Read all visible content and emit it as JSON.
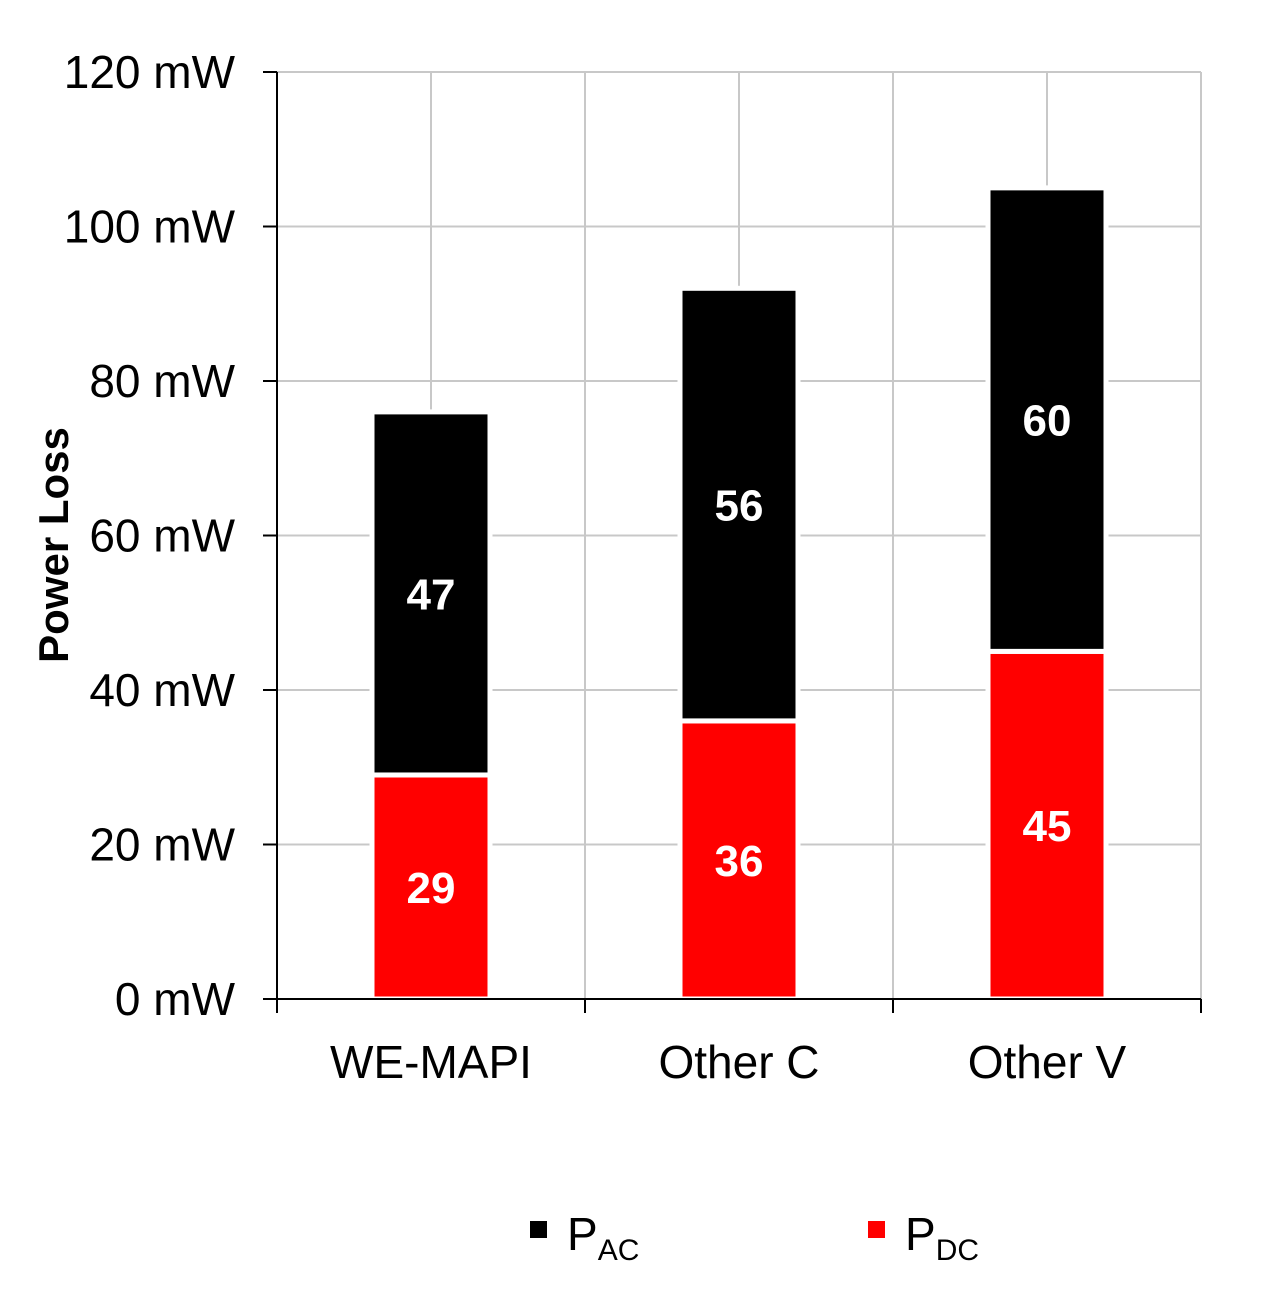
{
  "chart_data": {
    "type": "bar",
    "stacked": true,
    "categories": [
      "WE-MAPI",
      "Other C",
      "Other V"
    ],
    "series": [
      {
        "name": "PDC",
        "legend_main": "P",
        "legend_sub": "DC",
        "color": "#ff0000",
        "values": [
          29,
          36,
          45
        ]
      },
      {
        "name": "PAC",
        "legend_main": "P",
        "legend_sub": "AC",
        "color": "#000000",
        "values": [
          47,
          56,
          60
        ]
      }
    ],
    "bar_totals": [
      76,
      92,
      105
    ],
    "ylabel": "Power Loss",
    "ylim": [
      0,
      120
    ],
    "yticks": [
      0,
      20,
      40,
      60,
      80,
      100,
      120
    ],
    "ytick_labels": [
      "0 mW",
      "20 mW",
      "40 mW",
      "60 mW",
      "80 mW",
      "100 mW",
      "120 mW"
    ],
    "grid": true,
    "legend_position": "bottom"
  }
}
